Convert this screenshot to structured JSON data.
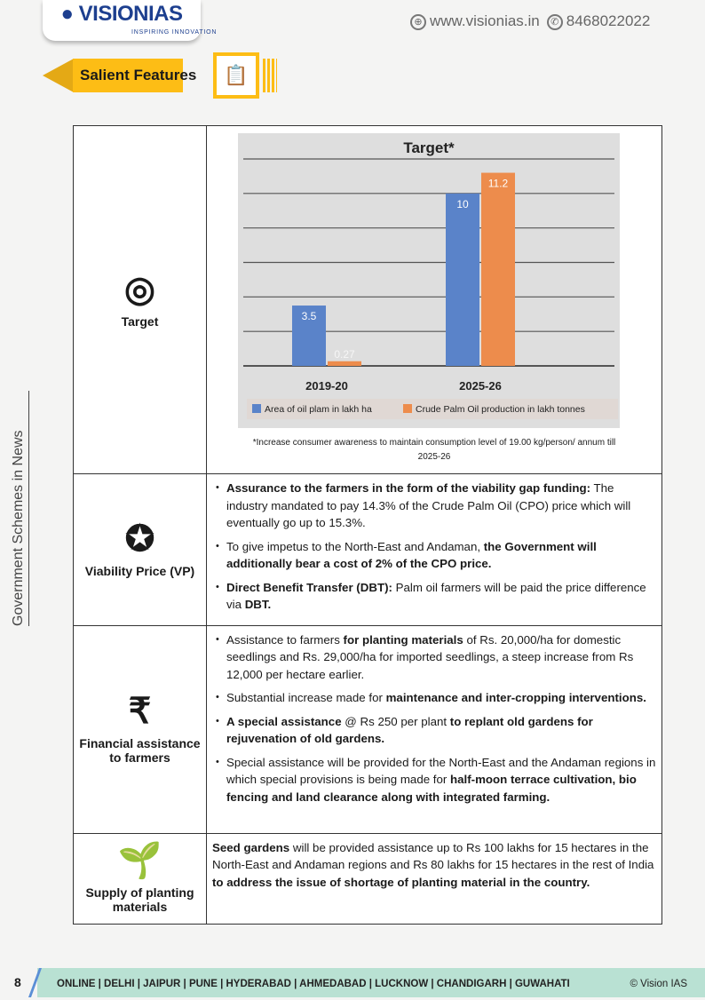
{
  "header": {
    "logo_text": "VISIONIAS",
    "logo_tagline": "INSPIRING INNOVATION",
    "website": "www.visionias.in",
    "phone": "8468022022",
    "icons": [
      "globe-icon",
      "phone-icon"
    ]
  },
  "banner": {
    "title": "Salient Features",
    "icon": "checklist-magnifier-icon",
    "color": "#fdbd15"
  },
  "side_title": "Government Schemes in News",
  "rows": [
    {
      "label": "Target",
      "icon": "target-icon"
    },
    {
      "label": "Viability Price (VP)",
      "icon": "badge-check-icon",
      "bullets": [
        [
          {
            "t": "Assurance to the farmers in the form of the viability gap funding:",
            "b": true
          },
          {
            "t": " The industry mandated to pay 14.3% of the Crude Palm Oil (CPO) price which will eventually go up to 15.3%."
          }
        ],
        [
          {
            "t": "To give impetus to the North-East and Andaman, "
          },
          {
            "t": "the Government will additionally bear a cost of 2% of the CPO price.",
            "b": true
          }
        ],
        [
          {
            "t": "Direct Benefit Transfer (DBT):",
            "b": true
          },
          {
            "t": " Palm oil farmers will be paid the price difference via "
          },
          {
            "t": "DBT.",
            "b": true
          }
        ]
      ]
    },
    {
      "label": "Financial assistance to farmers",
      "icon": "rupee-icon",
      "bullets": [
        [
          {
            "t": "Assistance to farmers "
          },
          {
            "t": "for planting materials",
            "b": true
          },
          {
            "t": " of Rs. 20,000/ha for domestic seedlings and Rs. 29,000/ha for imported seedlings, a steep increase from Rs 12,000 per hectare earlier."
          }
        ],
        [
          {
            "t": "Substantial increase made for "
          },
          {
            "t": "maintenance and inter-cropping interventions.",
            "b": true
          }
        ],
        [
          {
            "t": "A special assistance",
            "b": true
          },
          {
            "t": " @ Rs 250 per plant "
          },
          {
            "t": "to replant old gardens for rejuvenation of old gardens.",
            "b": true
          }
        ],
        [
          {
            "t": "Special assistance will be provided for the North-East and the Andaman regions in which special provisions is being made for "
          },
          {
            "t": "half-moon terrace cultivation, bio fencing and land clearance along with integrated farming.",
            "b": true
          }
        ]
      ]
    },
    {
      "label": "Supply of planting materials",
      "icon": "hand-plant-icon",
      "para": [
        {
          "t": "Seed gardens",
          "b": true
        },
        {
          "t": " will be provided assistance up to Rs 100 lakhs for 15 hectares in the North-East and Andaman regions and Rs 80 lakhs for 15 hectares in the rest of India "
        },
        {
          "t": "to address the issue of shortage of planting material in the country.",
          "b": true
        }
      ]
    }
  ],
  "chart_data": {
    "type": "bar",
    "title": "Target*",
    "categories": [
      "2019-20",
      "2025-26"
    ],
    "series": [
      {
        "name": "Area of oil plam in lakh ha",
        "values": [
          3.5,
          10
        ],
        "color": "#5a83c9"
      },
      {
        "name": "Crude Palm Oil production in lakh tonnes",
        "values": [
          0.27,
          11.2
        ],
        "color": "#ed8c4c"
      }
    ],
    "ylim": [
      0,
      12
    ],
    "grid": true,
    "legend": "bottom",
    "xlabel": "",
    "ylabel": "",
    "footnote": "*Increase consumer awareness to maintain consumption level of 19.00 kg/person/ annum till 2025-26"
  },
  "footer": {
    "page": "8",
    "locations": "ONLINE | DELHI | JAIPUR | PUNE | HYDERABAD | AHMEDABAD | LUCKNOW | CHANDIGARH | GUWAHATI",
    "copyright": "© Vision IAS",
    "color": "#b9e1d3"
  }
}
